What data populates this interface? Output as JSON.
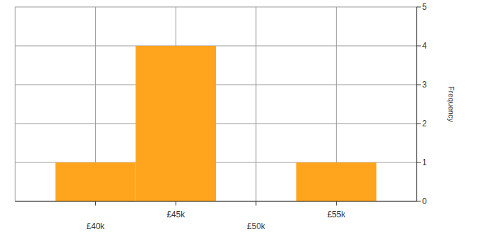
{
  "chart_data": {
    "type": "histogram",
    "bins": [
      37500,
      42500,
      47500,
      52500,
      57500
    ],
    "counts": [
      1,
      4,
      0,
      1
    ],
    "color": "#ffa41c",
    "y_label": "Frequency",
    "xlim": [
      35000,
      60000
    ],
    "xticks": [
      {
        "value": 40000,
        "label": "£40k"
      },
      {
        "value": 45000,
        "label": "£45k"
      },
      {
        "value": 50000,
        "label": "£50k"
      },
      {
        "value": 55000,
        "label": "£55k"
      }
    ],
    "ylim": [
      0,
      5
    ],
    "yticks": [
      0,
      1,
      2,
      3,
      4,
      5
    ],
    "grid": true
  }
}
